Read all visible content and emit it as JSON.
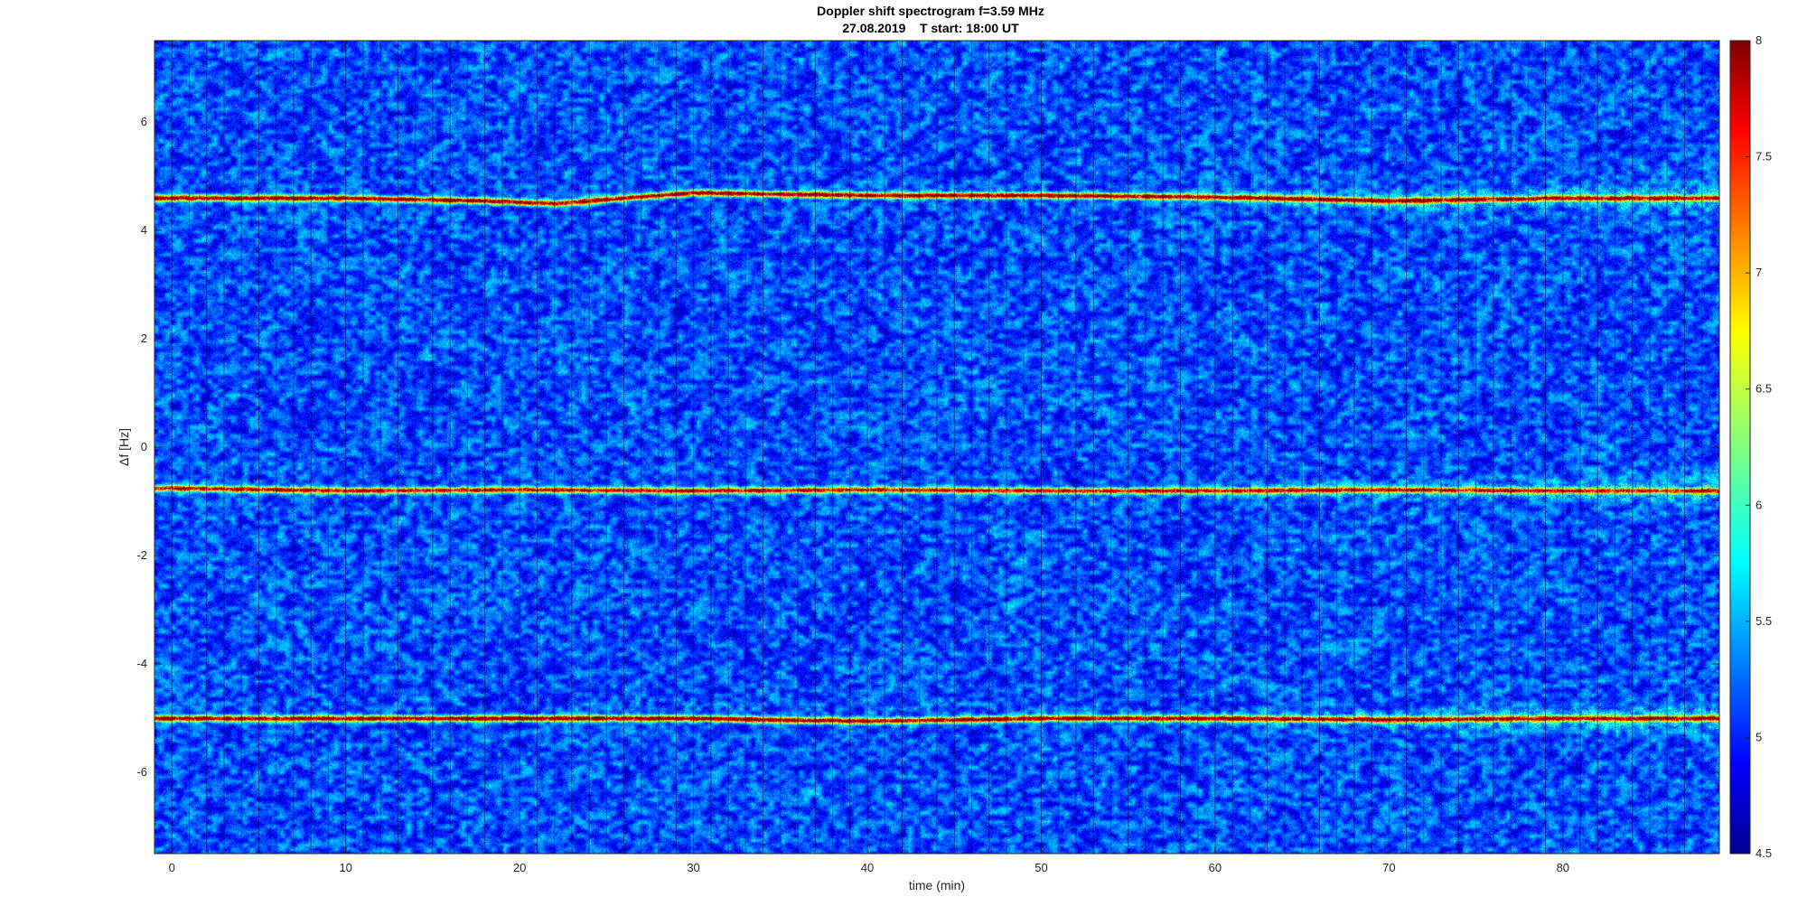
{
  "chart_data": {
    "type": "heatmap",
    "title": "Doppler shift spectrogram f=3.59 MHz",
    "subtitle": "27.08.2019    T start: 18:00 UT",
    "xlabel": "time (min)",
    "ylabel": "Δf [Hz]",
    "xlim": [
      -1,
      89
    ],
    "ylim": [
      -7.5,
      7.5
    ],
    "x_ticks": [
      0,
      10,
      20,
      30,
      40,
      50,
      60,
      70,
      80
    ],
    "y_ticks": [
      -6,
      -4,
      -2,
      0,
      2,
      4,
      6
    ],
    "colorbar": {
      "colormap": "jet",
      "clim": [
        4.5,
        8
      ],
      "ticks": [
        4.5,
        5,
        5.5,
        6,
        6.5,
        7,
        7.5,
        8
      ]
    },
    "background_level": 5.2,
    "segment_period_min": 1,
    "traces": [
      {
        "name": "",
        "x": [
          0,
          10,
          18,
          22,
          30,
          40,
          50,
          60,
          70,
          80,
          89
        ],
        "y": [
          4.6,
          4.6,
          4.55,
          4.5,
          4.7,
          4.65,
          4.65,
          4.62,
          4.55,
          4.6,
          4.6
        ],
        "peak_level": 7.9
      },
      {
        "name": "",
        "x": [
          0,
          10,
          20,
          30,
          40,
          50,
          60,
          70,
          80,
          89
        ],
        "y": [
          -0.75,
          -0.8,
          -0.78,
          -0.8,
          -0.78,
          -0.8,
          -0.8,
          -0.78,
          -0.8,
          -0.8
        ],
        "peak_level": 7.6
      },
      {
        "name": "",
        "x": [
          0,
          10,
          20,
          30,
          40,
          50,
          60,
          70,
          80,
          89
        ],
        "y": [
          -5.0,
          -5.0,
          -5.0,
          -5.0,
          -5.05,
          -5.0,
          -5.0,
          -5.02,
          -5.0,
          -5.0
        ],
        "peak_level": 7.9
      }
    ]
  },
  "colors": {
    "background": "#ffffff",
    "axis_text": "#262626",
    "title_text": "#000000",
    "jet_low": "#00008f",
    "jet_high": "#800000"
  }
}
